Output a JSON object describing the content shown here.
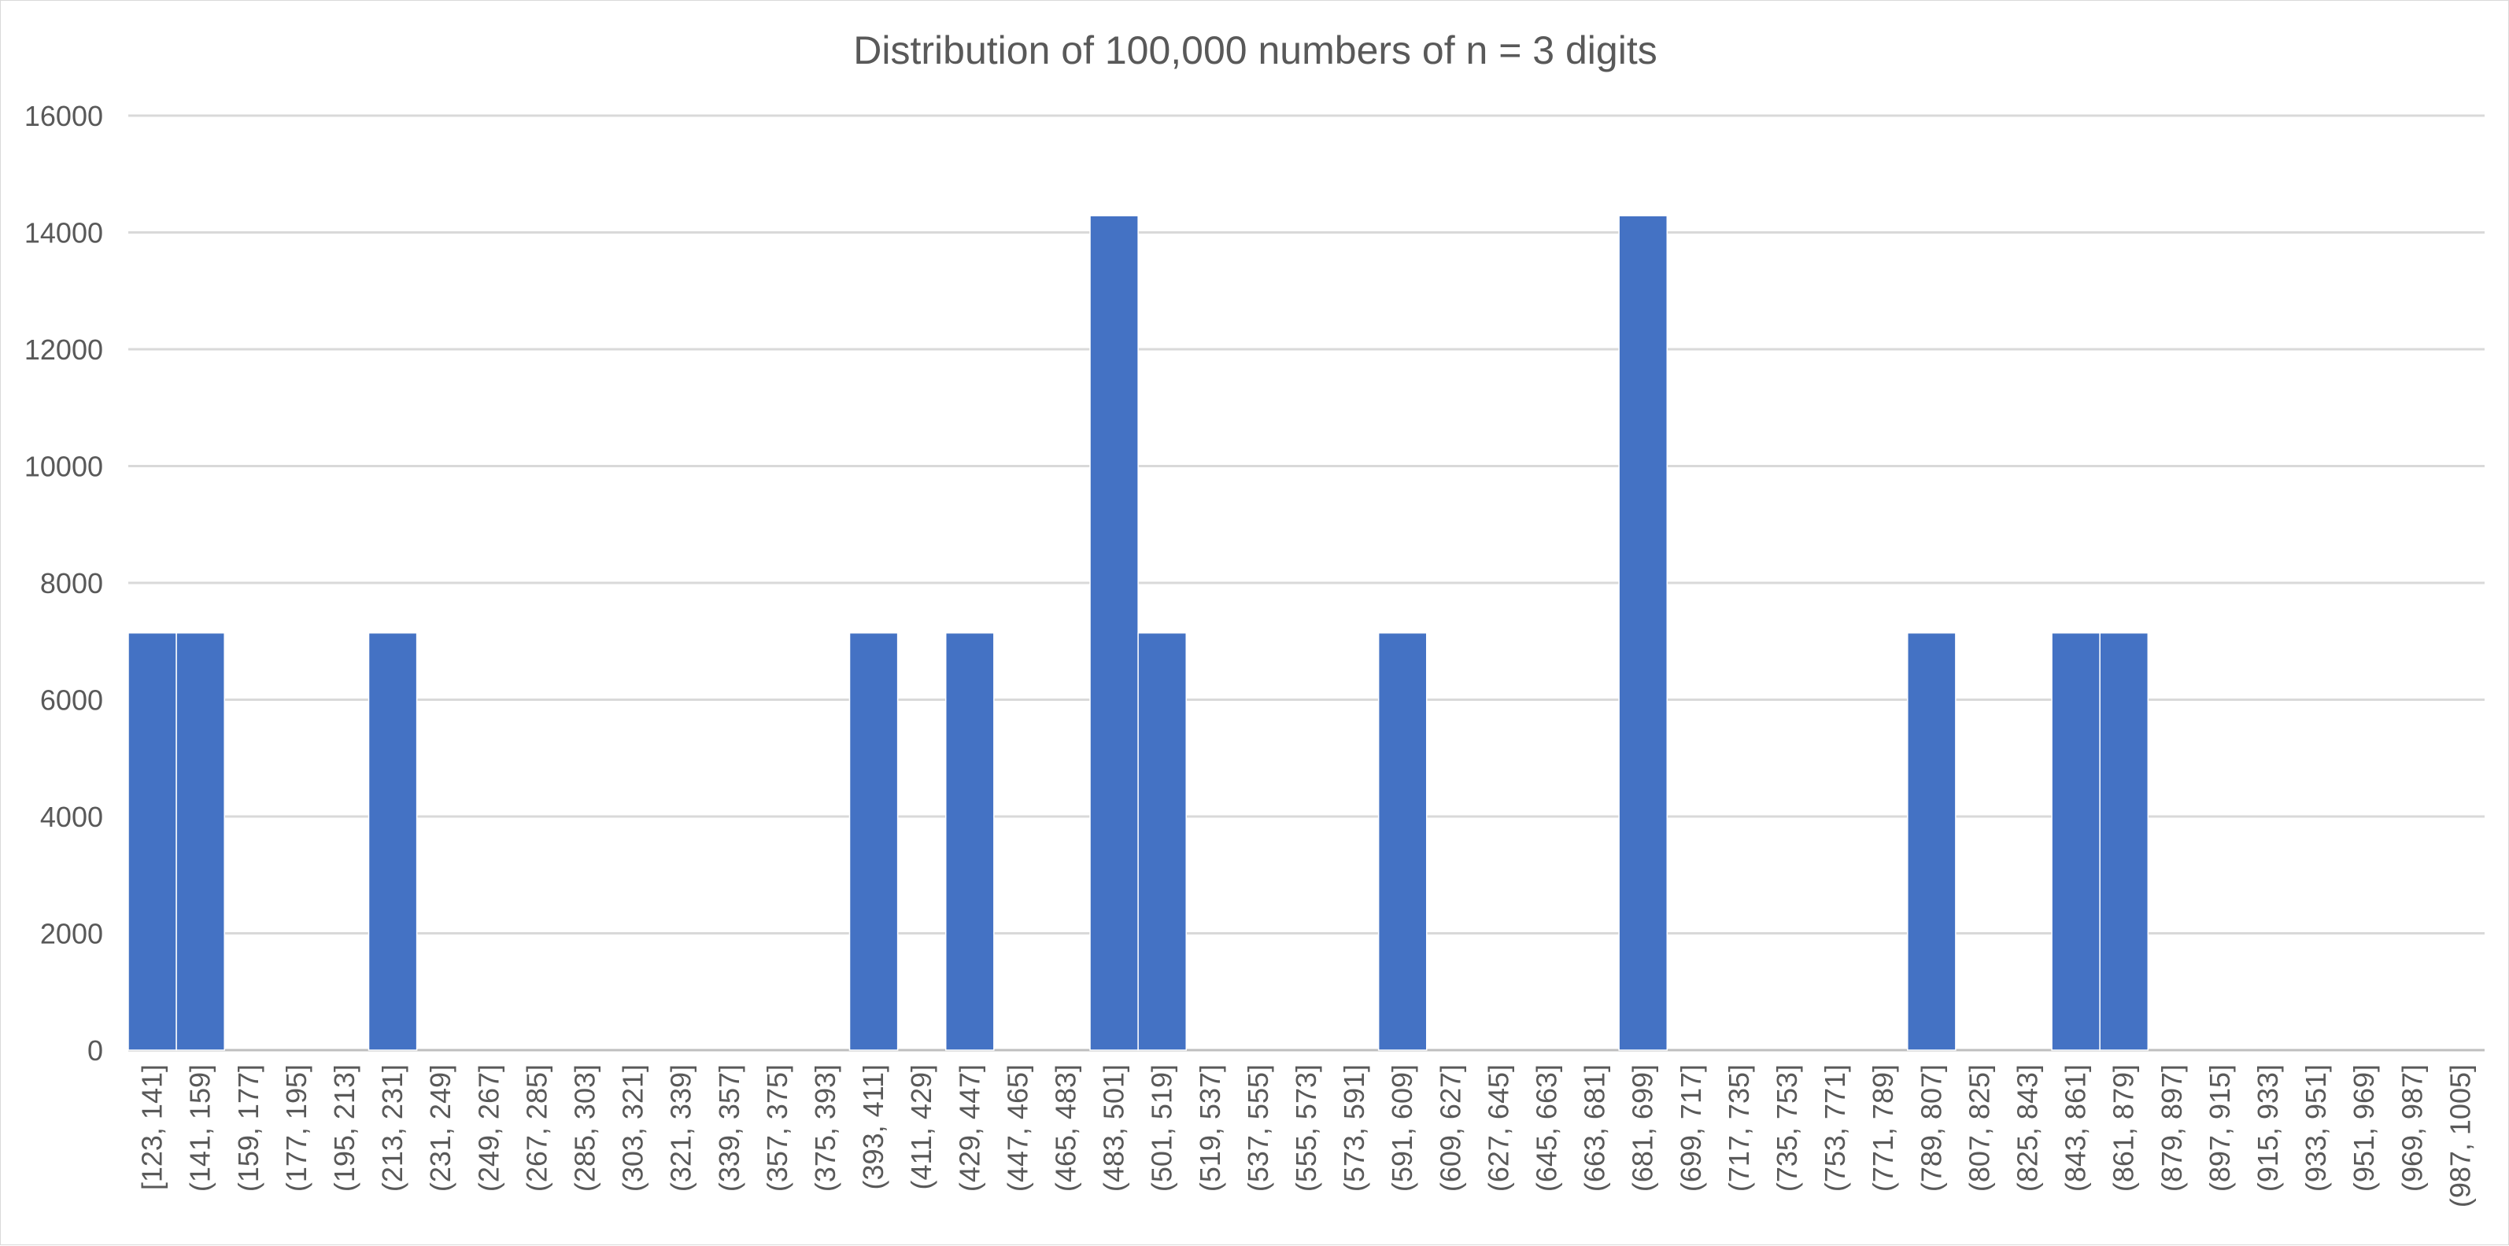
{
  "chart_data": {
    "type": "bar",
    "title": "Distribution of 100,000 numbers of n = 3 digits",
    "xlabel": "",
    "ylabel": "",
    "ylim": [
      0,
      16000
    ],
    "yticks": [
      "0",
      "2000",
      "4000",
      "6000",
      "8000",
      "10000",
      "12000",
      "14000",
      "16000"
    ],
    "grid": true,
    "legend": "none",
    "bar_color": "#4472C4",
    "categories": [
      "[123, 141]",
      "(141, 159]",
      "(159, 177]",
      "(177, 195]",
      "(195, 213]",
      "(213, 231]",
      "(231, 249]",
      "(249, 267]",
      "(267, 285]",
      "(285, 303]",
      "(303, 321]",
      "(321, 339]",
      "(339, 357]",
      "(357, 375]",
      "(375, 393]",
      "(393, 411]",
      "(411, 429]",
      "(429, 447]",
      "(447, 465]",
      "(465, 483]",
      "(483, 501]",
      "(501, 519]",
      "(519, 537]",
      "(537, 555]",
      "(555, 573]",
      "(573, 591]",
      "(591, 609]",
      "(609, 627]",
      "(627, 645]",
      "(645, 663]",
      "(663, 681]",
      "(681, 699]",
      "(699, 717]",
      "(717, 735]",
      "(735, 753]",
      "(753, 771]",
      "(771, 789]",
      "(789, 807]",
      "(807, 825]",
      "(825, 843]",
      "(843, 861]",
      "(861, 879]",
      "(879, 897]",
      "(897, 915]",
      "(915, 933]",
      "(933, 951]",
      "(951, 969]",
      "(969, 987]",
      "(987, 1005]"
    ],
    "values": [
      7143,
      7143,
      0,
      0,
      0,
      7143,
      0,
      0,
      0,
      0,
      0,
      0,
      0,
      0,
      0,
      7143,
      0,
      7143,
      0,
      0,
      14286,
      7143,
      0,
      0,
      0,
      0,
      7143,
      0,
      0,
      0,
      0,
      14286,
      0,
      0,
      0,
      0,
      0,
      7143,
      0,
      0,
      7143,
      7143,
      0,
      0,
      0,
      0,
      0,
      0,
      0
    ]
  }
}
